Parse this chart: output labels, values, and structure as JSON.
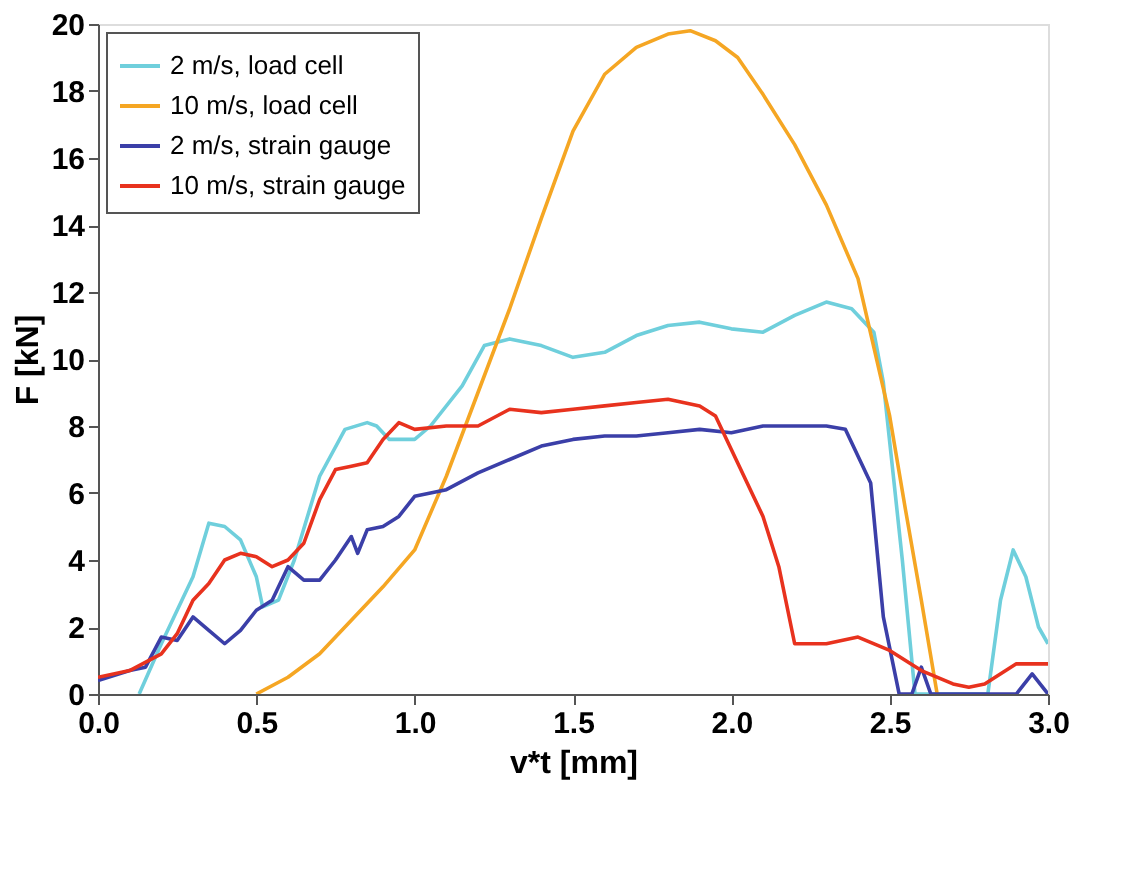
{
  "chart_data": {
    "type": "line",
    "xlabel": "v*t  [mm]",
    "ylabel": "F  [kN]",
    "xlim": [
      0,
      3
    ],
    "ylim": [
      0,
      20
    ],
    "xticks": [
      {
        "value": 0,
        "label": "0.0"
      },
      {
        "value": 0.5,
        "label": "0.5"
      },
      {
        "value": 1,
        "label": "1.0"
      },
      {
        "value": 1.5,
        "label": "1.5"
      },
      {
        "value": 2,
        "label": "2.0"
      },
      {
        "value": 2.5,
        "label": "2.5"
      },
      {
        "value": 3,
        "label": "3.0"
      }
    ],
    "yticks": [
      0,
      2,
      4,
      6,
      8,
      10,
      12,
      14,
      16,
      18,
      20
    ],
    "grid": false,
    "legend": "top left",
    "marker": "none",
    "line_style": "solid",
    "series": [
      {
        "name": "2 m/s, load cell",
        "color": "#6fcfdc",
        "x": [
          0.13,
          0.2,
          0.25,
          0.3,
          0.35,
          0.4,
          0.45,
          0.5,
          0.52,
          0.57,
          0.62,
          0.7,
          0.78,
          0.85,
          0.88,
          0.92,
          1.0,
          1.05,
          1.15,
          1.22,
          1.3,
          1.4,
          1.5,
          1.6,
          1.7,
          1.8,
          1.9,
          2.0,
          2.1,
          2.2,
          2.3,
          2.38,
          2.45,
          2.48,
          2.54,
          2.58,
          2.65,
          2.75,
          2.81,
          2.85,
          2.89,
          2.93,
          2.97,
          3.0
        ],
        "values": [
          0,
          1.5,
          2.5,
          3.5,
          5.1,
          5.0,
          4.6,
          3.5,
          2.6,
          2.8,
          4.0,
          6.5,
          7.9,
          8.1,
          8.0,
          7.6,
          7.6,
          8.0,
          9.2,
          10.4,
          10.6,
          10.4,
          10.05,
          10.2,
          10.7,
          11.0,
          11.1,
          10.9,
          10.8,
          11.3,
          11.7,
          11.5,
          10.8,
          9.3,
          4.0,
          0,
          0,
          0,
          0,
          2.8,
          4.3,
          3.5,
          2.0,
          1.5
        ]
      },
      {
        "name": "10 m/s, load cell",
        "color": "#f5a623",
        "x": [
          0.5,
          0.6,
          0.7,
          0.8,
          0.9,
          1.0,
          1.1,
          1.2,
          1.3,
          1.4,
          1.5,
          1.6,
          1.7,
          1.8,
          1.87,
          1.95,
          2.02,
          2.1,
          2.2,
          2.3,
          2.4,
          2.5,
          2.55,
          2.6,
          2.65
        ],
        "values": [
          0,
          0.5,
          1.2,
          2.2,
          3.2,
          4.3,
          6.5,
          9.0,
          11.5,
          14.2,
          16.8,
          18.5,
          19.3,
          19.7,
          19.8,
          19.5,
          19.0,
          17.9,
          16.4,
          14.6,
          12.4,
          8.3,
          5.5,
          2.8,
          0
        ]
      },
      {
        "name": "2 m/s, strain gauge",
        "color": "#3b3fa8",
        "x": [
          0.0,
          0.1,
          0.15,
          0.2,
          0.25,
          0.3,
          0.35,
          0.4,
          0.45,
          0.5,
          0.55,
          0.6,
          0.65,
          0.7,
          0.75,
          0.8,
          0.82,
          0.85,
          0.9,
          0.95,
          1.0,
          1.1,
          1.2,
          1.3,
          1.4,
          1.5,
          1.6,
          1.7,
          1.8,
          1.9,
          2.0,
          2.1,
          2.2,
          2.3,
          2.36,
          2.44,
          2.48,
          2.53,
          2.57,
          2.6,
          2.63,
          2.9,
          2.95,
          3.0
        ],
        "values": [
          0.4,
          0.7,
          0.8,
          1.7,
          1.6,
          2.3,
          1.9,
          1.5,
          1.9,
          2.5,
          2.8,
          3.8,
          3.4,
          3.4,
          4.0,
          4.7,
          4.2,
          4.9,
          5.0,
          5.3,
          5.9,
          6.1,
          6.6,
          7.0,
          7.4,
          7.6,
          7.7,
          7.7,
          7.8,
          7.9,
          7.8,
          8.0,
          8.0,
          8.0,
          7.9,
          6.3,
          2.3,
          0,
          0,
          0.8,
          0,
          0,
          0.6,
          0
        ]
      },
      {
        "name": "10 m/s, strain gauge",
        "color": "#e8321e",
        "x": [
          0.0,
          0.1,
          0.2,
          0.25,
          0.3,
          0.35,
          0.4,
          0.45,
          0.5,
          0.55,
          0.6,
          0.65,
          0.7,
          0.75,
          0.8,
          0.85,
          0.9,
          0.95,
          1.0,
          1.1,
          1.2,
          1.3,
          1.4,
          1.5,
          1.6,
          1.7,
          1.8,
          1.9,
          1.95,
          2.0,
          2.1,
          2.15,
          2.2,
          2.3,
          2.4,
          2.5,
          2.6,
          2.7,
          2.75,
          2.8,
          2.9,
          3.0
        ],
        "values": [
          0.5,
          0.7,
          1.2,
          1.8,
          2.8,
          3.3,
          4.0,
          4.2,
          4.1,
          3.8,
          4.0,
          4.5,
          5.8,
          6.7,
          6.8,
          6.9,
          7.6,
          8.1,
          7.9,
          8.0,
          8.0,
          8.5,
          8.4,
          8.5,
          8.6,
          8.7,
          8.8,
          8.6,
          8.3,
          7.3,
          5.3,
          3.8,
          1.5,
          1.5,
          1.7,
          1.3,
          0.7,
          0.3,
          0.2,
          0.3,
          0.9,
          0.9
        ]
      }
    ]
  }
}
